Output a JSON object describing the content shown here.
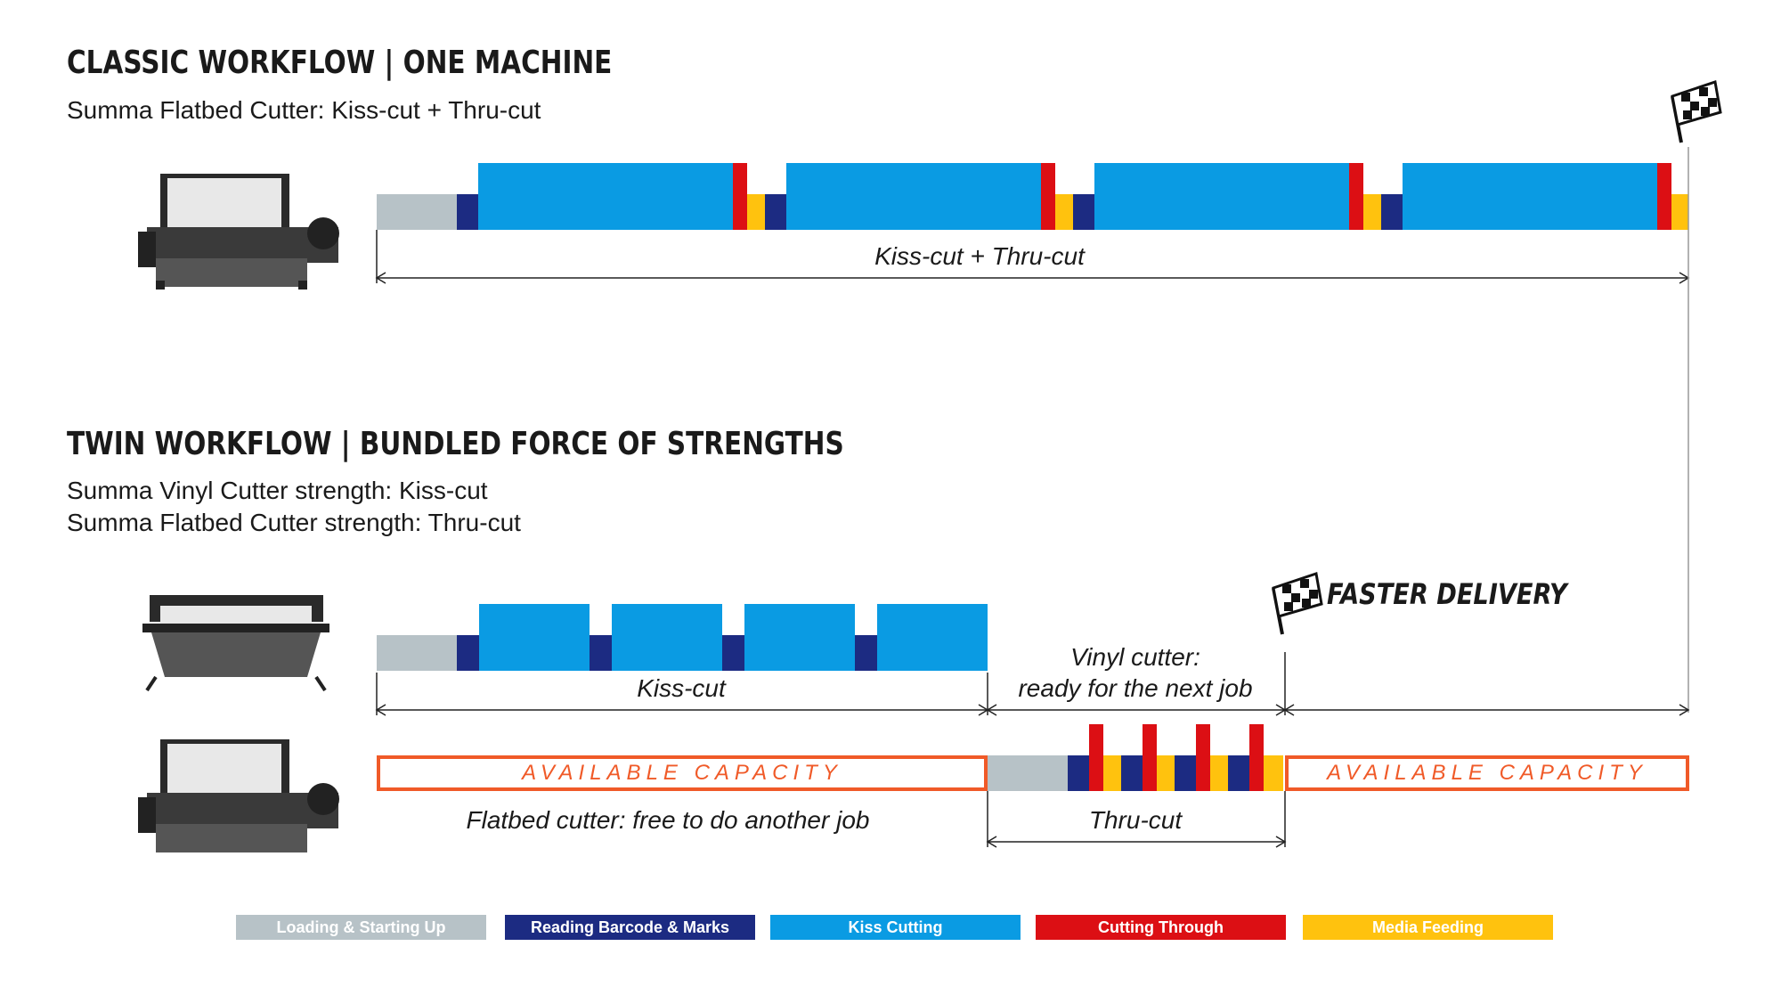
{
  "classic": {
    "title": "CLASSIC WORKFLOW | ONE MACHINE",
    "subtitle": "Summa Flatbed Cutter: Kiss-cut + Thru-cut",
    "span_label": "Kiss-cut + Thru-cut"
  },
  "twin": {
    "title": "TWIN WORKFLOW | BUNDLED FORCE OF STRENGTHS",
    "line1": "Summa Vinyl Cutter strength: Kiss-cut",
    "line2": "Summa Flatbed Cutter strength: Thru-cut",
    "kiss_label": "Kiss-cut",
    "vinyl_label_1": "Vinyl cutter:",
    "vinyl_label_2": "ready for the next job",
    "thru_label": "Thru-cut",
    "flatbed_free": "Flatbed cutter: free to do another job",
    "capacity": "AVAILABLE CAPACITY",
    "faster": "FASTER DELIVERY"
  },
  "legend": [
    {
      "label": "Loading & Starting Up",
      "color": "#b7c2c7"
    },
    {
      "label": "Reading Barcode & Marks",
      "color": "#1c2b82"
    },
    {
      "label": "Kiss Cutting",
      "color": "#0a9be3"
    },
    {
      "label": "Cutting Through",
      "color": "#dc0f14"
    },
    {
      "label": "Media Feeding",
      "color": "#ffc20e"
    }
  ],
  "colors": {
    "loading": "#b7c2c7",
    "barcode": "#1c2b82",
    "kiss": "#0a9be3",
    "thru": "#dc0f14",
    "feed": "#ffc20e",
    "capacity": "#f05a28"
  }
}
